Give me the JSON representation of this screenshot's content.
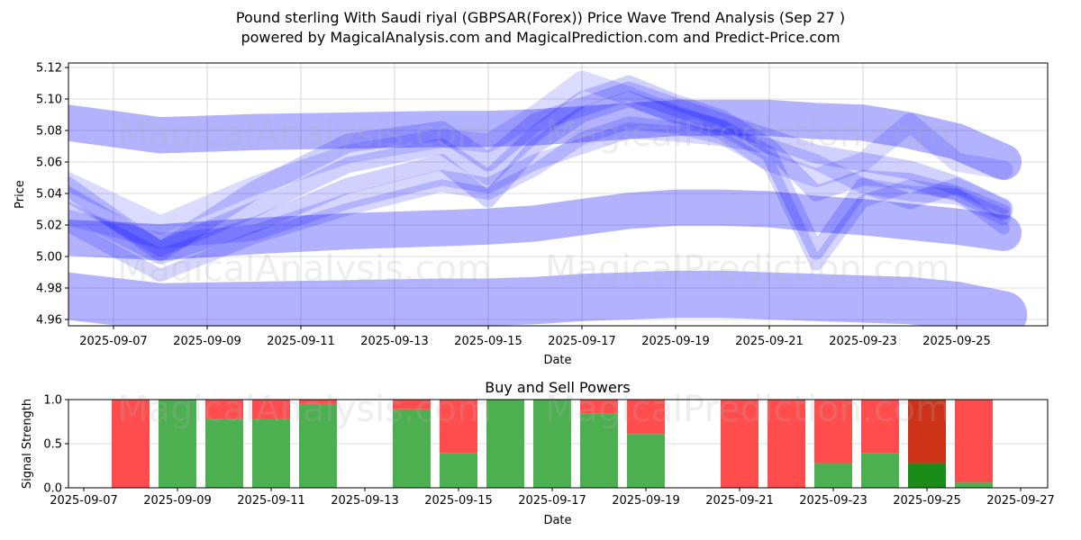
{
  "header": {
    "title": "Pound sterling With Saudi riyal (GBPSAR(Forex)) Price Wave Trend Analysis (Sep 27 )",
    "subtitle": "powered by MagicalAnalysis.com and MagicalPrediction.com and Predict-Price.com"
  },
  "watermarks": [
    "MagicalAnalysis.com",
    "MagicalPrediction.com"
  ],
  "colors": {
    "wave": "#0000ff",
    "buy": "#4caf50",
    "sell": "#ff4d4d",
    "buy_strong": "#1a8c1a",
    "sell_strong": "#cc3318",
    "grid": "#d0d0d0"
  },
  "chart_data": [
    {
      "type": "area",
      "title": "",
      "xlabel": "Date",
      "ylabel": "Price",
      "ylim": [
        4.955,
        5.122
      ],
      "xlim": [
        "2025-09-06",
        "2025-09-27"
      ],
      "grid": true,
      "y_ticks": [
        "5.12",
        "5.10",
        "5.08",
        "5.06",
        "5.04",
        "5.02",
        "5.00",
        "4.98",
        "4.96"
      ],
      "x_ticks": [
        "2025-09-07",
        "2025-09-09",
        "2025-09-11",
        "2025-09-13",
        "2025-09-15",
        "2025-09-17",
        "2025-09-19",
        "2025-09-21",
        "2025-09-23",
        "2025-09-25"
      ],
      "x": [
        "2025-09-06",
        "2025-09-08",
        "2025-09-10",
        "2025-09-12",
        "2025-09-14",
        "2025-09-15",
        "2025-09-16",
        "2025-09-17",
        "2025-09-18",
        "2025-09-19",
        "2025-09-20",
        "2025-09-21",
        "2025-09-22",
        "2025-09-23",
        "2025-09-24",
        "2025-09-25",
        "2025-09-26"
      ],
      "series": [
        {
          "name": "upper-band",
          "width": 0.023,
          "alpha": 0.3,
          "values": [
            5.085,
            5.077,
            5.079,
            5.08,
            5.081,
            5.081,
            5.082,
            5.084,
            5.086,
            5.088,
            5.088,
            5.088,
            5.086,
            5.085,
            5.08,
            5.073,
            5.06
          ]
        },
        {
          "name": "middle-band",
          "width": 0.023,
          "alpha": 0.3,
          "values": [
            5.012,
            5.009,
            5.013,
            5.016,
            5.018,
            5.019,
            5.021,
            5.025,
            5.029,
            5.031,
            5.031,
            5.03,
            5.027,
            5.025,
            5.022,
            5.019,
            5.015
          ]
        },
        {
          "name": "lower-band",
          "width": 0.03,
          "alpha": 0.3,
          "values": [
            4.975,
            4.968,
            4.969,
            4.97,
            4.971,
            4.971,
            4.972,
            4.974,
            4.975,
            4.976,
            4.976,
            4.975,
            4.974,
            4.973,
            4.972,
            4.969,
            4.963
          ]
        },
        {
          "name": "wave-1",
          "width": 0.012,
          "alpha": 0.18,
          "values": [
            5.045,
            5.003,
            5.042,
            5.072,
            5.08,
            5.06,
            5.085,
            5.095,
            5.105,
            5.095,
            5.085,
            5.075,
            5.065,
            5.06,
            5.055,
            5.045,
            5.03
          ]
        },
        {
          "name": "wave-2",
          "width": 0.01,
          "alpha": 0.18,
          "values": [
            5.04,
            5.005,
            5.03,
            5.058,
            5.07,
            5.05,
            5.078,
            5.1,
            5.11,
            5.098,
            5.088,
            5.07,
            5.04,
            5.05,
            5.048,
            5.04,
            5.028
          ]
        },
        {
          "name": "wave-3",
          "width": 0.01,
          "alpha": 0.18,
          "values": [
            5.03,
            5.0,
            5.02,
            5.045,
            5.06,
            5.036,
            5.07,
            5.09,
            5.1,
            5.09,
            5.082,
            5.065,
            5.003,
            5.045,
            5.035,
            5.045,
            5.032
          ]
        },
        {
          "name": "wave-4",
          "width": 0.01,
          "alpha": 0.16,
          "values": [
            5.025,
            5.01,
            5.015,
            5.035,
            5.05,
            5.045,
            5.06,
            5.07,
            5.08,
            5.078,
            5.075,
            5.07,
            5.06,
            5.045,
            5.04,
            5.038,
            5.025
          ]
        },
        {
          "name": "wave-5",
          "width": 0.008,
          "alpha": 0.16,
          "values": [
            5.02,
            4.988,
            5.012,
            5.03,
            5.045,
            5.04,
            5.055,
            5.075,
            5.085,
            5.082,
            5.075,
            5.058,
            4.995,
            5.035,
            5.045,
            5.04,
            5.018
          ]
        },
        {
          "name": "wave-6",
          "width": 0.012,
          "alpha": 0.14,
          "values": [
            5.048,
            5.02,
            5.045,
            5.065,
            5.075,
            5.072,
            5.09,
            5.112,
            5.102,
            5.09,
            5.08,
            5.06,
            5.05,
            5.06,
            5.085,
            5.06,
            5.055
          ]
        }
      ]
    },
    {
      "type": "bar",
      "title": "Buy and Sell Powers",
      "xlabel": "Date",
      "ylabel": "Signal Strength",
      "ylim": [
        0,
        1
      ],
      "y_ticks": [
        "0.0",
        "0.5",
        "1.0"
      ],
      "x_ticks": [
        "2025-09-07",
        "2025-09-09",
        "2025-09-11",
        "2025-09-13",
        "2025-09-15",
        "2025-09-17",
        "2025-09-19",
        "2025-09-21",
        "2025-09-23",
        "2025-09-25",
        "2025-09-27"
      ],
      "xlim": [
        "2025-09-06.67",
        "2025-09-27.5"
      ],
      "categories": [
        "2025-09-08",
        "2025-09-09",
        "2025-09-10",
        "2025-09-11",
        "2025-09-12",
        "2025-09-14",
        "2025-09-15",
        "2025-09-16",
        "2025-09-17",
        "2025-09-18",
        "2025-09-19",
        "2025-09-21",
        "2025-09-22",
        "2025-09-23",
        "2025-09-24",
        "2025-09-25",
        "2025-09-26"
      ],
      "series": [
        {
          "name": "Buy",
          "values": [
            0.0,
            1.0,
            0.78,
            0.78,
            0.95,
            0.89,
            0.39,
            1.0,
            1.0,
            0.84,
            0.61,
            0.0,
            0.0,
            0.28,
            0.39,
            0.28,
            0.06
          ]
        },
        {
          "name": "Sell",
          "values": [
            1.0,
            0.0,
            0.22,
            0.22,
            0.05,
            0.11,
            0.61,
            0.0,
            0.0,
            0.16,
            0.39,
            1.0,
            1.0,
            0.72,
            0.61,
            0.72,
            0.94
          ]
        }
      ],
      "strong": [
        false,
        false,
        false,
        false,
        false,
        false,
        false,
        false,
        false,
        false,
        false,
        false,
        false,
        false,
        false,
        true,
        false
      ]
    }
  ]
}
